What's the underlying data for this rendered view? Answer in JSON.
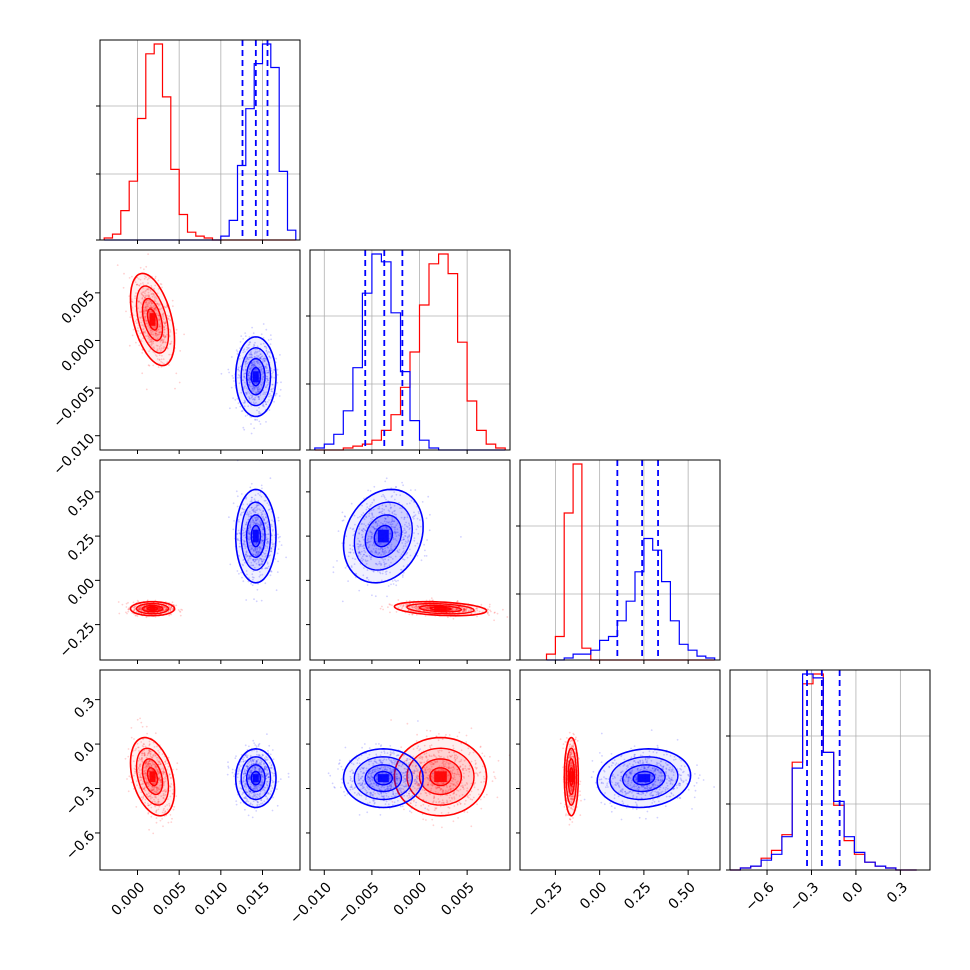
{
  "chart_data": {
    "type": "corner",
    "title": "",
    "grid": true,
    "colors": {
      "red": "#ff0000",
      "blue": "#0000ff",
      "frame": "#000000",
      "grid": "#b0b0b0"
    },
    "parameters": [
      {
        "index": 0,
        "label": "",
        "xlim": [
          -0.0045,
          0.0195
        ],
        "xticks": [
          "0.000",
          "0.005",
          "0.010",
          "0.015"
        ],
        "xtick_values": [
          0.0,
          0.005,
          0.01,
          0.015
        ]
      },
      {
        "index": 1,
        "label": "",
        "lim": [
          -0.0115,
          0.0095
        ],
        "ticks": [
          "0.005",
          "0.000",
          "−0.005",
          "−0.010"
        ],
        "xticks": [
          "−0.010",
          "−0.005",
          "0.000",
          "0.005"
        ],
        "tick_values": [
          0.005,
          0.0,
          -0.005,
          -0.01
        ],
        "xtick_values": [
          -0.01,
          -0.005,
          0.0,
          0.005
        ]
      },
      {
        "index": 2,
        "label": "",
        "lim": [
          -0.45,
          0.68
        ],
        "ticks": [
          "0.50",
          "0.25",
          "0.00",
          "−0.25"
        ],
        "xticks": [
          "−0.25",
          "0.00",
          "0.25",
          "0.50"
        ],
        "tick_values": [
          0.5,
          0.25,
          0.0,
          -0.25
        ],
        "xtick_values": [
          -0.25,
          0.0,
          0.25,
          0.5
        ]
      },
      {
        "index": 3,
        "label": "",
        "lim": [
          -0.85,
          0.5
        ],
        "ticks": [
          "0.3",
          "0.0",
          "−0.3",
          "−0.6"
        ],
        "xticks": [
          "−0.6",
          "−0.3",
          "0.0",
          "0.3"
        ],
        "tick_values": [
          0.3,
          0.0,
          -0.3,
          -0.6
        ],
        "xtick_values": [
          -0.6,
          -0.3,
          0.0,
          0.3
        ]
      }
    ],
    "series": [
      {
        "name": "",
        "color": "#ff0000",
        "mean": [
          0.0018,
          0.0022,
          -0.16,
          -0.22
        ],
        "sd": [
          0.0012,
          0.0022,
          0.018,
          0.12
        ],
        "corr": {
          "0-1": -0.45,
          "0-3": -0.35,
          "1-2": -0.3
        }
      },
      {
        "name": "",
        "color": "#0000ff",
        "mean": [
          0.0142,
          -0.0038,
          0.25,
          -0.23
        ],
        "sd": [
          0.0011,
          0.0019,
          0.12,
          0.09
        ],
        "corr": {
          "1-2": 0.2,
          "2-3": 0.1
        }
      }
    ],
    "quantile_lines": {
      "color": "#0000ff",
      "p0": [
        0.0126,
        0.0142,
        0.0156
      ],
      "p1": [
        -0.0057,
        -0.0037,
        -0.0018
      ],
      "p2": [
        0.1,
        0.24,
        0.33
      ],
      "p3": [
        -0.33,
        -0.23,
        -0.11
      ]
    },
    "histograms": {
      "p0": {
        "edges": [
          -0.004,
          -0.003,
          -0.002,
          -0.001,
          0.0,
          0.001,
          0.002,
          0.003,
          0.004,
          0.005,
          0.006,
          0.007,
          0.008,
          0.009,
          0.01,
          0.011,
          0.012,
          0.013,
          0.014,
          0.015,
          0.016,
          0.017,
          0.018,
          0.019
        ],
        "red": [
          0.01,
          0.03,
          0.15,
          0.3,
          0.62,
          0.95,
          1.0,
          0.73,
          0.36,
          0.13,
          0.04,
          0.02,
          0.01,
          0,
          0,
          0,
          0,
          0,
          0,
          0,
          0,
          0,
          0
        ],
        "blue": [
          0,
          0,
          0,
          0,
          0,
          0,
          0,
          0,
          0,
          0,
          0,
          0,
          0,
          0,
          0.02,
          0.1,
          0.38,
          0.67,
          0.9,
          1.0,
          0.88,
          0.35,
          0.05
        ]
      },
      "p1": {
        "edges": [
          -0.011,
          -0.01,
          -0.009,
          -0.008,
          -0.007,
          -0.006,
          -0.005,
          -0.004,
          -0.003,
          -0.002,
          -0.001,
          0.0,
          0.001,
          0.002,
          0.003,
          0.004,
          0.005,
          0.006,
          0.007,
          0.008,
          0.009
        ],
        "red": [
          0,
          0,
          0,
          0.01,
          0.02,
          0.03,
          0.05,
          0.1,
          0.18,
          0.32,
          0.5,
          0.74,
          0.95,
          1.0,
          0.9,
          0.55,
          0.25,
          0.1,
          0.03,
          0.01
        ],
        "blue": [
          0.01,
          0.03,
          0.08,
          0.2,
          0.42,
          0.8,
          1.0,
          0.96,
          0.7,
          0.4,
          0.15,
          0.05,
          0.01,
          0,
          0,
          0,
          0,
          0,
          0,
          0
        ]
      },
      "p2": {
        "edges": [
          -0.3,
          -0.25,
          -0.2,
          -0.15,
          -0.1,
          -0.05,
          0.0,
          0.05,
          0.1,
          0.15,
          0.2,
          0.25,
          0.3,
          0.35,
          0.4,
          0.45,
          0.5,
          0.55,
          0.6,
          0.65
        ],
        "red": [
          0.03,
          0.12,
          0.75,
          1.0,
          0.06,
          0,
          0,
          0,
          0,
          0,
          0,
          0,
          0,
          0,
          0,
          0,
          0,
          0,
          0
        ],
        "blue": [
          0,
          0,
          0.01,
          0.03,
          0.03,
          0.05,
          0.1,
          0.12,
          0.2,
          0.3,
          0.45,
          0.62,
          0.56,
          0.4,
          0.2,
          0.08,
          0.05,
          0.02,
          0.01
        ]
      },
      "p3": {
        "edges": [
          -0.85,
          -0.78,
          -0.71,
          -0.64,
          -0.57,
          -0.5,
          -0.43,
          -0.36,
          -0.29,
          -0.22,
          -0.15,
          -0.08,
          -0.01,
          0.06,
          0.13,
          0.2,
          0.27,
          0.34,
          0.41
        ],
        "red": [
          0.0,
          0.01,
          0.02,
          0.06,
          0.1,
          0.18,
          0.55,
          0.95,
          1.0,
          0.6,
          0.33,
          0.15,
          0.08,
          0.04,
          0.02,
          0.01,
          0.0,
          0.0
        ],
        "blue": [
          0.0,
          0.01,
          0.02,
          0.05,
          0.08,
          0.17,
          0.52,
          1.0,
          0.98,
          0.6,
          0.35,
          0.17,
          0.09,
          0.04,
          0.02,
          0.01,
          0.0,
          0.0
        ]
      }
    }
  }
}
